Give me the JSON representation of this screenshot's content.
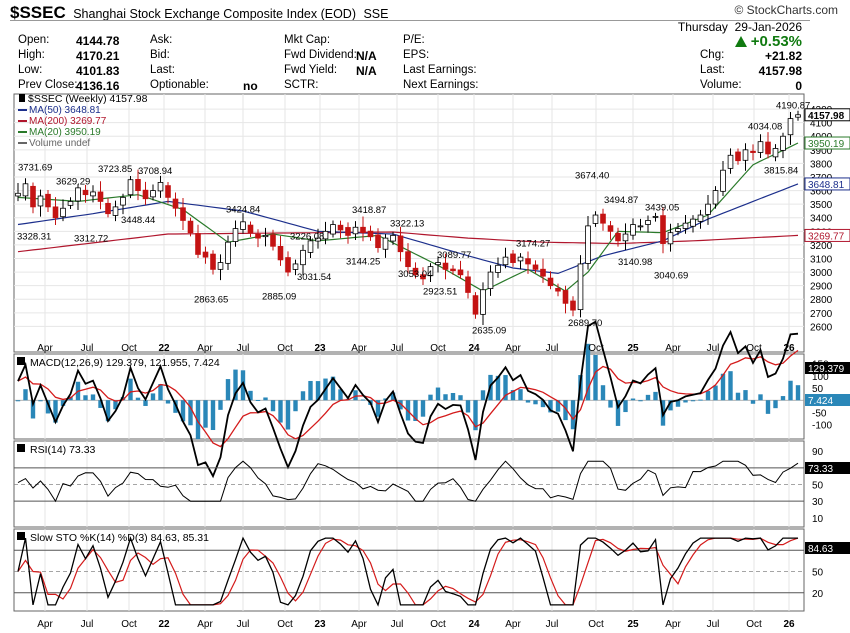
{
  "header": {
    "symbol": "$SSEC",
    "title": "Shanghai Stock Exchange Composite Index (EOD)",
    "exchange": "SSE",
    "logo": "© StockCharts.com",
    "weekday": "Thursday",
    "date": "29-Jan-2026",
    "pct_change": "+0.53%",
    "pct_direction_color": "#107a10",
    "col1": [
      {
        "label": "Open:",
        "value": "4144.78"
      },
      {
        "label": "High:",
        "value": "4170.21"
      },
      {
        "label": "Low:",
        "value": "4101.83"
      },
      {
        "label": "Prev Close:",
        "value": "4136.16"
      }
    ],
    "col2": [
      {
        "label": "Ask:",
        "value": ""
      },
      {
        "label": "Bid:",
        "value": ""
      },
      {
        "label": "Last:",
        "value": ""
      },
      {
        "label": "Optionable:",
        "value": "no"
      }
    ],
    "col3": [
      {
        "label": "Mkt Cap:",
        "value": ""
      },
      {
        "label": "Fwd Dividend:",
        "value": "N/A"
      },
      {
        "label": "Fwd Yield:",
        "value": "N/A"
      },
      {
        "label": "SCTR:",
        "value": ""
      }
    ],
    "col4": [
      {
        "label": "P/E:"
      },
      {
        "label": "EPS:"
      },
      {
        "label": "Last Earnings:"
      },
      {
        "label": "Next Earnings:"
      }
    ],
    "col5": [
      {
        "label": "Chg:",
        "value": "+21.82"
      },
      {
        "label": "Last:",
        "value": "4157.98"
      },
      {
        "label": "Volume:",
        "value": "0"
      }
    ]
  },
  "chart_data": [
    {
      "type": "candlestick",
      "title": "$SSEC (Weekly) 4157.98",
      "x_tick_labels": [
        "Apr",
        "Jul",
        "Oct",
        "22",
        "Apr",
        "Jul",
        "Oct",
        "23",
        "Apr",
        "Jul",
        "Oct",
        "24",
        "Apr",
        "Jul",
        "Oct",
        "25",
        "Apr",
        "Jul",
        "Oct",
        "26"
      ],
      "y_tick_labels": [
        "2600",
        "2700",
        "2800",
        "2900",
        "3000",
        "3100",
        "3200",
        "3300",
        "3400",
        "3500",
        "3600",
        "3700",
        "3800",
        "3900",
        "4000",
        "4100",
        "4200"
      ],
      "ylim": [
        2500,
        4230
      ],
      "legend": [
        {
          "name": "MA(50) 3648.81",
          "color": "#1c2f8c"
        },
        {
          "name": "MA(200) 3269.77",
          "color": "#b0162d"
        },
        {
          "name": "MA(20) 3950.19",
          "color": "#2a7a2a"
        },
        {
          "name": "Volume undef",
          "color": "#666666"
        }
      ],
      "price_annotations": [
        "3731.69",
        "3629.29",
        "3723.85",
        "3708.94",
        "3328.31",
        "3312.72",
        "3448.44",
        "3424.84",
        "2863.65",
        "3226.08",
        "3031.54",
        "2885.09",
        "3418.87",
        "3322.13",
        "3144.25",
        "3089.77",
        "3053.04",
        "2923.51",
        "3174.27",
        "2635.09",
        "2689.70",
        "3674.40",
        "3494.87",
        "3439.05",
        "3140.98",
        "3040.69",
        "4034.08",
        "3815.84",
        "4190.87"
      ],
      "right_axis_tags": [
        {
          "text": "4157.98",
          "value": 4157.98,
          "color": "#000000"
        },
        {
          "text": "3950.19",
          "value": 3950.19,
          "color": "#2a7a2a"
        },
        {
          "text": "3648.81",
          "value": 3648.81,
          "color": "#1c2f8c"
        },
        {
          "text": "3269.77",
          "value": 3269.77,
          "color": "#b0162d"
        }
      ],
      "close_path": [
        [
          0,
          3580
        ],
        [
          1,
          3650
        ],
        [
          2,
          3480
        ],
        [
          3,
          3560
        ],
        [
          4,
          3480
        ],
        [
          5,
          3400
        ],
        [
          6,
          3470
        ],
        [
          7,
          3520
        ],
        [
          8,
          3620
        ],
        [
          9,
          3570
        ],
        [
          10,
          3590
        ],
        [
          11,
          3520
        ],
        [
          12,
          3430
        ],
        [
          13,
          3480
        ],
        [
          14,
          3550
        ],
        [
          15,
          3680
        ],
        [
          16,
          3600
        ],
        [
          17,
          3540
        ],
        [
          18,
          3600
        ],
        [
          19,
          3660
        ],
        [
          20,
          3550
        ],
        [
          21,
          3470
        ],
        [
          22,
          3380
        ],
        [
          23,
          3290
        ],
        [
          24,
          3130
        ],
        [
          25,
          3110
        ],
        [
          26,
          3020
        ],
        [
          27,
          3070
        ],
        [
          28,
          3220
        ],
        [
          29,
          3320
        ],
        [
          30,
          3370
        ],
        [
          31,
          3290
        ],
        [
          32,
          3250
        ],
        [
          33,
          3270
        ],
        [
          34,
          3190
        ],
        [
          35,
          3090
        ],
        [
          36,
          3000
        ],
        [
          37,
          3060
        ],
        [
          38,
          3160
        ],
        [
          39,
          3230
        ],
        [
          40,
          3250
        ],
        [
          41,
          3300
        ],
        [
          42,
          3350
        ],
        [
          43,
          3310
        ],
        [
          44,
          3270
        ],
        [
          45,
          3330
        ],
        [
          46,
          3290
        ],
        [
          47,
          3260
        ],
        [
          48,
          3180
        ],
        [
          49,
          3250
        ],
        [
          50,
          3270
        ],
        [
          51,
          3150
        ],
        [
          52,
          3040
        ],
        [
          53,
          2980
        ],
        [
          54,
          2950
        ],
        [
          55,
          3040
        ],
        [
          56,
          3070
        ],
        [
          57,
          3020
        ],
        [
          58,
          3010
        ],
        [
          59,
          2980
        ],
        [
          60,
          2850
        ],
        [
          61,
          2690
        ],
        [
          62,
          2870
        ],
        [
          63,
          3000
        ],
        [
          64,
          3050
        ],
        [
          65,
          3110
        ],
        [
          66,
          3070
        ],
        [
          67,
          3110
        ],
        [
          68,
          3060
        ],
        [
          69,
          3020
        ],
        [
          70,
          2970
        ],
        [
          71,
          2900
        ],
        [
          72,
          2860
        ],
        [
          73,
          2770
        ],
        [
          74,
          2720
        ],
        [
          75,
          3060
        ],
        [
          76,
          3340
        ],
        [
          77,
          3420
        ],
        [
          78,
          3360
        ],
        [
          79,
          3300
        ],
        [
          80,
          3230
        ],
        [
          81,
          3280
        ],
        [
          82,
          3350
        ],
        [
          83,
          3340
        ],
        [
          84,
          3380
        ],
        [
          85,
          3410
        ],
        [
          86,
          3210
        ],
        [
          87,
          3290
        ],
        [
          88,
          3320
        ],
        [
          89,
          3360
        ],
        [
          90,
          3390
        ],
        [
          91,
          3420
        ],
        [
          92,
          3500
        ],
        [
          93,
          3600
        ],
        [
          94,
          3750
        ],
        [
          95,
          3860
        ],
        [
          96,
          3820
        ],
        [
          97,
          3900
        ],
        [
          98,
          3880
        ],
        [
          99,
          3960
        ],
        [
          100,
          3870
        ],
        [
          101,
          3910
        ],
        [
          102,
          4000
        ],
        [
          103,
          4130
        ],
        [
          104,
          4158
        ]
      ],
      "ma50_path": [
        [
          0,
          3350
        ],
        [
          10,
          3430
        ],
        [
          20,
          3520
        ],
        [
          30,
          3450
        ],
        [
          40,
          3300
        ],
        [
          50,
          3280
        ],
        [
          60,
          3120
        ],
        [
          66,
          3030
        ],
        [
          72,
          2990
        ],
        [
          78,
          3120
        ],
        [
          86,
          3230
        ],
        [
          92,
          3390
        ],
        [
          98,
          3520
        ],
        [
          104,
          3649
        ]
      ],
      "ma200_path": [
        [
          0,
          3150
        ],
        [
          20,
          3280
        ],
        [
          40,
          3290
        ],
        [
          50,
          3295
        ],
        [
          60,
          3250
        ],
        [
          70,
          3220
        ],
        [
          80,
          3210
        ],
        [
          90,
          3230
        ],
        [
          104,
          3270
        ]
      ],
      "ma20_path": [
        [
          0,
          3550
        ],
        [
          8,
          3520
        ],
        [
          16,
          3570
        ],
        [
          22,
          3460
        ],
        [
          28,
          3220
        ],
        [
          34,
          3280
        ],
        [
          40,
          3230
        ],
        [
          48,
          3270
        ],
        [
          56,
          3050
        ],
        [
          62,
          2860
        ],
        [
          68,
          3020
        ],
        [
          73,
          2860
        ],
        [
          76,
          3000
        ],
        [
          80,
          3300
        ],
        [
          86,
          3290
        ],
        [
          92,
          3420
        ],
        [
          98,
          3790
        ],
        [
          104,
          3950
        ]
      ]
    },
    {
      "type": "line",
      "title": "MACD(12,26,9) 129.379, 121.955, 7.424",
      "series": [
        {
          "name": "MACD 129.379",
          "color": "#000000"
        },
        {
          "name": "Signal 121.955",
          "color": "#d41b1b"
        },
        {
          "name": "Histogram 7.424",
          "color": "#2a87b8"
        }
      ],
      "y_tick_labels": [
        "150",
        "100",
        "50",
        "0",
        "-50",
        "-100"
      ],
      "right_axis_tags": [
        {
          "text": "129.379",
          "color": "#ffffff"
        },
        {
          "text": "7.424",
          "color": "#ffffff"
        }
      ]
    },
    {
      "type": "line",
      "title": "RSI(14) 73.33",
      "y_tick_labels": [
        "90",
        "70",
        "50",
        "30",
        "10"
      ],
      "right_axis_tags": [
        {
          "text": "73.33",
          "color": "#ffffff"
        }
      ]
    },
    {
      "type": "line",
      "title": "Slow STO %K(14) %D(3) 84.63, 85.31",
      "y_tick_labels": [
        "80",
        "50",
        "20"
      ],
      "right_axis_tags": [
        {
          "text": "84.63",
          "color": "#ffffff"
        }
      ]
    }
  ]
}
